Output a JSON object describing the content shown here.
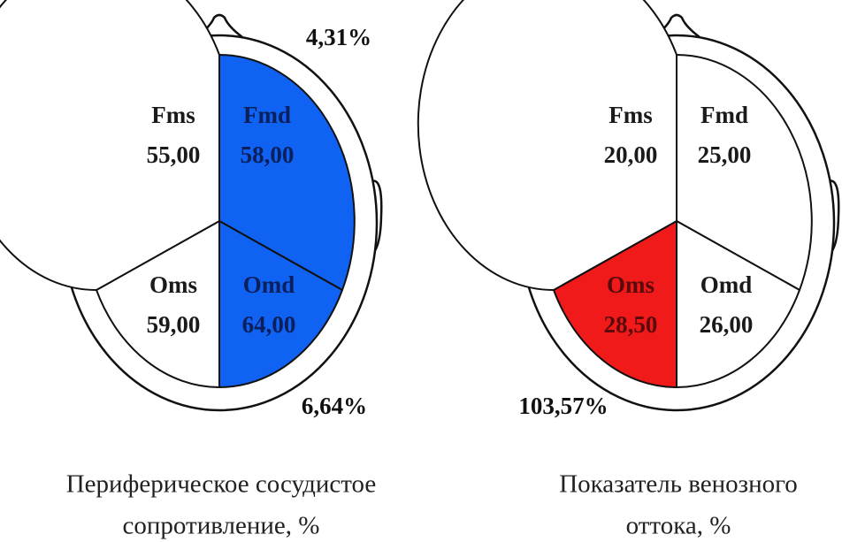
{
  "diagrams": [
    {
      "caption_lines": [
        "Периферическое сосудистое",
        "сопротивление, %"
      ],
      "annotations": [
        {
          "text": "4,31%",
          "corner": "top-right"
        },
        {
          "text": "6,64%",
          "corner": "bottom-right"
        }
      ],
      "regions": {
        "fms": {
          "name": "Fms",
          "value": "55,00",
          "color": "#ffffff",
          "text_color": "#1a1a1a"
        },
        "fmd": {
          "name": "Fmd",
          "value": "58,00",
          "color": "#0f62f2",
          "text_color": "#0b1f5c"
        },
        "oms": {
          "name": "Oms",
          "value": "59,00",
          "color": "#ffffff",
          "text_color": "#1a1a1a"
        },
        "omd": {
          "name": "Omd",
          "value": "64,00",
          "color": "#0f62f2",
          "text_color": "#0b1f5c"
        }
      }
    },
    {
      "caption_lines": [
        "Показатель венозного",
        "оттока, %"
      ],
      "annotations": [
        {
          "text": "103,57%",
          "corner": "bottom-left"
        }
      ],
      "regions": {
        "fms": {
          "name": "Fms",
          "value": "20,00",
          "color": "#ffffff",
          "text_color": "#1a1a1a"
        },
        "fmd": {
          "name": "Fmd",
          "value": "25,00",
          "color": "#ffffff",
          "text_color": "#1a1a1a"
        },
        "oms": {
          "name": "Oms",
          "value": "28,50",
          "color": "#f11a1a",
          "text_color": "#5a0a0a"
        },
        "omd": {
          "name": "Omd",
          "value": "26,00",
          "color": "#ffffff",
          "text_color": "#1a1a1a"
        }
      }
    }
  ]
}
